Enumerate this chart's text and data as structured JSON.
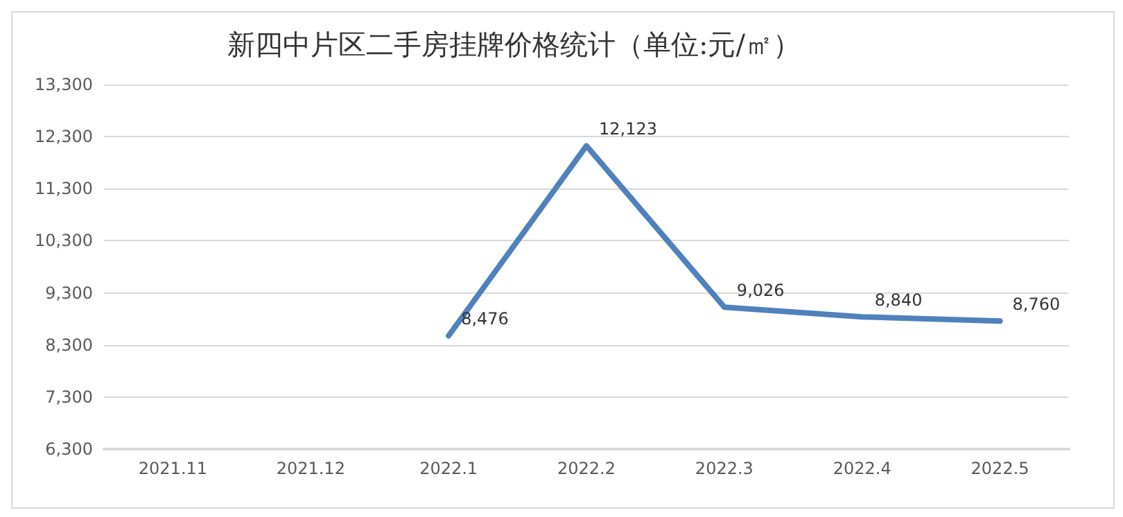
{
  "chart_data": {
    "type": "line",
    "title": "新四中片区二手房挂牌价格统计（单位:元/㎡）",
    "categories": [
      "2021.11",
      "2021.12",
      "2022.1",
      "2022.2",
      "2022.3",
      "2022.4",
      "2022.5"
    ],
    "series": [
      {
        "color": "#4f81bd",
        "values": [
          null,
          null,
          8476,
          12123,
          9026,
          8840,
          8760
        ],
        "value_labels": [
          null,
          null,
          "8,476",
          "12,123",
          "9,026",
          "8,840",
          "8,760"
        ]
      }
    ],
    "ylim": [
      6300,
      13300
    ],
    "yticks": [
      {
        "value": 6300,
        "label": "6,300"
      },
      {
        "value": 7300,
        "label": "7,300"
      },
      {
        "value": 8300,
        "label": "8,300"
      },
      {
        "value": 9300,
        "label": "9,300"
      },
      {
        "value": 10300,
        "label": "10,300"
      },
      {
        "value": 11300,
        "label": "11,300"
      },
      {
        "value": 12300,
        "label": "12,300"
      },
      {
        "value": 13300,
        "label": "13,300"
      }
    ],
    "grid": "y",
    "marker": "none",
    "line_style": "solid"
  }
}
